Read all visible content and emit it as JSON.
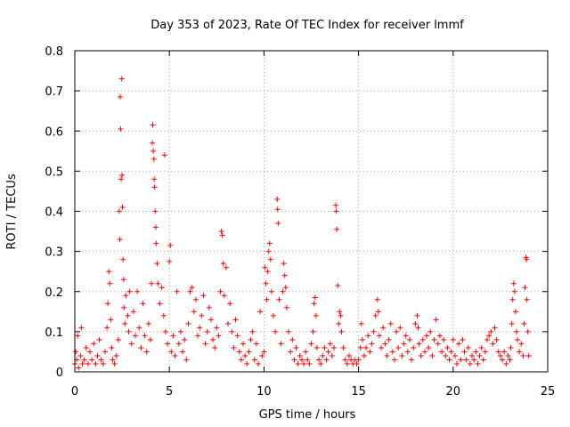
{
  "chart_data": {
    "type": "scatter",
    "title": "Day 353 of 2023, Rate Of TEC Index for receiver lmmf",
    "xlabel": "GPS time / hours",
    "ylabel": "ROTI / TECUs",
    "xlim": [
      0,
      25
    ],
    "ylim": [
      0,
      0.8
    ],
    "xticks": [
      0,
      5,
      10,
      15,
      20,
      25
    ],
    "yticks": [
      0,
      0.1,
      0.2,
      0.3,
      0.4,
      0.5,
      0.6,
      0.7,
      0.8
    ],
    "grid": true,
    "marker": "+",
    "color": "#ff0000",
    "series": [
      {
        "points": [
          [
            0.0,
            0.02
          ],
          [
            0.05,
            0.05
          ],
          [
            0.1,
            0.03
          ],
          [
            0.15,
            0.09
          ],
          [
            0.2,
            0.01
          ],
          [
            0.3,
            0.04
          ],
          [
            0.35,
            0.11
          ],
          [
            0.4,
            0.02
          ],
          [
            0.5,
            0.03
          ],
          [
            0.6,
            0.06
          ],
          [
            0.7,
            0.02
          ],
          [
            0.8,
            0.05
          ],
          [
            0.9,
            0.03
          ],
          [
            1.0,
            0.07
          ],
          [
            1.1,
            0.02
          ],
          [
            1.2,
            0.04
          ],
          [
            1.3,
            0.08
          ],
          [
            1.4,
            0.03
          ],
          [
            1.5,
            0.02
          ],
          [
            1.6,
            0.05
          ],
          [
            1.7,
            0.11
          ],
          [
            1.75,
            0.17
          ],
          [
            1.8,
            0.25
          ],
          [
            1.85,
            0.22
          ],
          [
            1.9,
            0.13
          ],
          [
            1.95,
            0.06
          ],
          [
            2.0,
            0.03
          ],
          [
            2.1,
            0.02
          ],
          [
            2.2,
            0.04
          ],
          [
            2.3,
            0.08
          ],
          [
            2.35,
            0.4
          ],
          [
            2.38,
            0.33
          ],
          [
            2.4,
            0.685
          ],
          [
            2.42,
            0.605
          ],
          [
            2.45,
            0.48
          ],
          [
            2.48,
            0.73
          ],
          [
            2.5,
            0.49
          ],
          [
            2.52,
            0.41
          ],
          [
            2.55,
            0.28
          ],
          [
            2.58,
            0.23
          ],
          [
            2.6,
            0.16
          ],
          [
            2.65,
            0.12
          ],
          [
            2.7,
            0.19
          ],
          [
            2.8,
            0.14
          ],
          [
            2.85,
            0.1
          ],
          [
            2.9,
            0.2
          ],
          [
            3.0,
            0.07
          ],
          [
            3.1,
            0.15
          ],
          [
            3.2,
            0.09
          ],
          [
            3.3,
            0.2
          ],
          [
            3.4,
            0.11
          ],
          [
            3.5,
            0.06
          ],
          [
            3.6,
            0.17
          ],
          [
            3.7,
            0.09
          ],
          [
            3.8,
            0.05
          ],
          [
            3.9,
            0.12
          ],
          [
            4.0,
            0.08
          ],
          [
            4.05,
            0.22
          ],
          [
            4.1,
            0.57
          ],
          [
            4.12,
            0.615
          ],
          [
            4.15,
            0.55
          ],
          [
            4.18,
            0.53
          ],
          [
            4.2,
            0.48
          ],
          [
            4.22,
            0.46
          ],
          [
            4.25,
            0.4
          ],
          [
            4.28,
            0.36
          ],
          [
            4.3,
            0.32
          ],
          [
            4.35,
            0.27
          ],
          [
            4.4,
            0.22
          ],
          [
            4.5,
            0.17
          ],
          [
            4.6,
            0.21
          ],
          [
            4.7,
            0.14
          ],
          [
            4.75,
            0.54
          ],
          [
            4.8,
            0.1
          ],
          [
            4.9,
            0.07
          ],
          [
            5.0,
            0.275
          ],
          [
            5.05,
            0.315
          ],
          [
            5.1,
            0.05
          ],
          [
            5.2,
            0.09
          ],
          [
            5.3,
            0.04
          ],
          [
            5.4,
            0.2
          ],
          [
            5.5,
            0.07
          ],
          [
            5.6,
            0.1
          ],
          [
            5.7,
            0.05
          ],
          [
            5.8,
            0.08
          ],
          [
            5.9,
            0.03
          ],
          [
            6.0,
            0.12
          ],
          [
            6.1,
            0.2
          ],
          [
            6.2,
            0.21
          ],
          [
            6.3,
            0.15
          ],
          [
            6.4,
            0.18
          ],
          [
            6.5,
            0.09
          ],
          [
            6.6,
            0.11
          ],
          [
            6.7,
            0.14
          ],
          [
            6.8,
            0.19
          ],
          [
            6.9,
            0.07
          ],
          [
            7.0,
            0.1
          ],
          [
            7.1,
            0.16
          ],
          [
            7.2,
            0.13
          ],
          [
            7.3,
            0.08
          ],
          [
            7.4,
            0.06
          ],
          [
            7.5,
            0.11
          ],
          [
            7.6,
            0.09
          ],
          [
            7.7,
            0.2
          ],
          [
            7.75,
            0.35
          ],
          [
            7.8,
            0.34
          ],
          [
            7.85,
            0.27
          ],
          [
            7.9,
            0.19
          ],
          [
            8.0,
            0.26
          ],
          [
            8.1,
            0.12
          ],
          [
            8.2,
            0.17
          ],
          [
            8.3,
            0.1
          ],
          [
            8.4,
            0.06
          ],
          [
            8.5,
            0.13
          ],
          [
            8.6,
            0.09
          ],
          [
            8.7,
            0.05
          ],
          [
            8.8,
            0.03
          ],
          [
            8.9,
            0.07
          ],
          [
            9.0,
            0.04
          ],
          [
            9.1,
            0.02
          ],
          [
            9.2,
            0.05
          ],
          [
            9.3,
            0.08
          ],
          [
            9.4,
            0.1
          ],
          [
            9.5,
            0.03
          ],
          [
            9.6,
            0.07
          ],
          [
            9.7,
            0.02
          ],
          [
            9.8,
            0.15
          ],
          [
            9.9,
            0.04
          ],
          [
            10.0,
            0.05
          ],
          [
            10.05,
            0.26
          ],
          [
            10.1,
            0.22
          ],
          [
            10.15,
            0.18
          ],
          [
            10.2,
            0.25
          ],
          [
            10.25,
            0.3
          ],
          [
            10.3,
            0.32
          ],
          [
            10.35,
            0.28
          ],
          [
            10.4,
            0.2
          ],
          [
            10.5,
            0.14
          ],
          [
            10.6,
            0.1
          ],
          [
            10.7,
            0.43
          ],
          [
            10.72,
            0.405
          ],
          [
            10.75,
            0.37
          ],
          [
            10.8,
            0.18
          ],
          [
            10.9,
            0.07
          ],
          [
            11.0,
            0.2
          ],
          [
            11.05,
            0.27
          ],
          [
            11.1,
            0.24
          ],
          [
            11.15,
            0.21
          ],
          [
            11.2,
            0.16
          ],
          [
            11.3,
            0.1
          ],
          [
            11.4,
            0.05
          ],
          [
            11.5,
            0.08
          ],
          [
            11.6,
            0.03
          ],
          [
            11.7,
            0.06
          ],
          [
            11.8,
            0.02
          ],
          [
            11.9,
            0.04
          ],
          [
            12.0,
            0.03
          ],
          [
            12.1,
            0.02
          ],
          [
            12.2,
            0.05
          ],
          [
            12.3,
            0.03
          ],
          [
            12.4,
            0.02
          ],
          [
            12.5,
            0.07
          ],
          [
            12.6,
            0.1
          ],
          [
            12.65,
            0.17
          ],
          [
            12.7,
            0.185
          ],
          [
            12.75,
            0.14
          ],
          [
            12.8,
            0.06
          ],
          [
            12.9,
            0.03
          ],
          [
            13.0,
            0.02
          ],
          [
            13.1,
            0.04
          ],
          [
            13.2,
            0.06
          ],
          [
            13.3,
            0.03
          ],
          [
            13.4,
            0.05
          ],
          [
            13.5,
            0.07
          ],
          [
            13.6,
            0.04
          ],
          [
            13.7,
            0.06
          ],
          [
            13.8,
            0.415
          ],
          [
            13.82,
            0.4
          ],
          [
            13.85,
            0.355
          ],
          [
            13.9,
            0.215
          ],
          [
            13.95,
            0.12
          ],
          [
            14.0,
            0.15
          ],
          [
            14.05,
            0.14
          ],
          [
            14.1,
            0.1
          ],
          [
            14.2,
            0.06
          ],
          [
            14.3,
            0.03
          ],
          [
            14.4,
            0.02
          ],
          [
            14.5,
            0.04
          ],
          [
            14.6,
            0.03
          ],
          [
            14.7,
            0.02
          ],
          [
            14.8,
            0.03
          ],
          [
            14.9,
            0.02
          ],
          [
            15.0,
            0.03
          ],
          [
            15.1,
            0.06
          ],
          [
            15.15,
            0.12
          ],
          [
            15.2,
            0.08
          ],
          [
            15.3,
            0.04
          ],
          [
            15.4,
            0.06
          ],
          [
            15.5,
            0.09
          ],
          [
            15.6,
            0.05
          ],
          [
            15.7,
            0.07
          ],
          [
            15.8,
            0.1
          ],
          [
            15.9,
            0.14
          ],
          [
            16.0,
            0.18
          ],
          [
            16.05,
            0.15
          ],
          [
            16.1,
            0.09
          ],
          [
            16.2,
            0.06
          ],
          [
            16.3,
            0.11
          ],
          [
            16.4,
            0.07
          ],
          [
            16.5,
            0.04
          ],
          [
            16.6,
            0.08
          ],
          [
            16.7,
            0.12
          ],
          [
            16.8,
            0.05
          ],
          [
            16.9,
            0.03
          ],
          [
            17.0,
            0.1
          ],
          [
            17.1,
            0.06
          ],
          [
            17.2,
            0.11
          ],
          [
            17.3,
            0.04
          ],
          [
            17.4,
            0.07
          ],
          [
            17.5,
            0.09
          ],
          [
            17.6,
            0.05
          ],
          [
            17.7,
            0.08
          ],
          [
            17.8,
            0.03
          ],
          [
            17.9,
            0.06
          ],
          [
            18.0,
            0.12
          ],
          [
            18.1,
            0.14
          ],
          [
            18.15,
            0.11
          ],
          [
            18.2,
            0.07
          ],
          [
            18.3,
            0.04
          ],
          [
            18.4,
            0.08
          ],
          [
            18.5,
            0.05
          ],
          [
            18.6,
            0.09
          ],
          [
            18.7,
            0.06
          ],
          [
            18.8,
            0.1
          ],
          [
            18.9,
            0.04
          ],
          [
            19.0,
            0.08
          ],
          [
            19.1,
            0.13
          ],
          [
            19.2,
            0.07
          ],
          [
            19.3,
            0.09
          ],
          [
            19.4,
            0.05
          ],
          [
            19.5,
            0.08
          ],
          [
            19.6,
            0.04
          ],
          [
            19.7,
            0.06
          ],
          [
            19.8,
            0.03
          ],
          [
            19.9,
            0.05
          ],
          [
            20.0,
            0.08
          ],
          [
            20.1,
            0.04
          ],
          [
            20.2,
            0.02
          ],
          [
            20.3,
            0.07
          ],
          [
            20.4,
            0.03
          ],
          [
            20.5,
            0.08
          ],
          [
            20.6,
            0.05
          ],
          [
            20.7,
            0.03
          ],
          [
            20.8,
            0.06
          ],
          [
            20.9,
            0.02
          ],
          [
            21.0,
            0.04
          ],
          [
            21.1,
            0.03
          ],
          [
            21.2,
            0.05
          ],
          [
            21.3,
            0.02
          ],
          [
            21.4,
            0.04
          ],
          [
            21.5,
            0.06
          ],
          [
            21.6,
            0.03
          ],
          [
            21.7,
            0.05
          ],
          [
            21.8,
            0.08
          ],
          [
            21.9,
            0.09
          ],
          [
            22.0,
            0.1
          ],
          [
            22.1,
            0.07
          ],
          [
            22.2,
            0.11
          ],
          [
            22.3,
            0.08
          ],
          [
            22.4,
            0.05
          ],
          [
            22.5,
            0.04
          ],
          [
            22.6,
            0.03
          ],
          [
            22.7,
            0.05
          ],
          [
            22.8,
            0.02
          ],
          [
            22.9,
            0.04
          ],
          [
            23.0,
            0.03
          ],
          [
            23.05,
            0.06
          ],
          [
            23.1,
            0.12
          ],
          [
            23.15,
            0.18
          ],
          [
            23.2,
            0.22
          ],
          [
            23.25,
            0.2
          ],
          [
            23.3,
            0.15
          ],
          [
            23.35,
            0.1
          ],
          [
            23.4,
            0.08
          ],
          [
            23.5,
            0.05
          ],
          [
            23.6,
            0.07
          ],
          [
            23.7,
            0.04
          ],
          [
            23.75,
            0.12
          ],
          [
            23.8,
            0.21
          ],
          [
            23.85,
            0.285
          ],
          [
            23.88,
            0.28
          ],
          [
            23.9,
            0.18
          ],
          [
            23.95,
            0.1
          ],
          [
            24.0,
            0.04
          ]
        ]
      }
    ]
  }
}
